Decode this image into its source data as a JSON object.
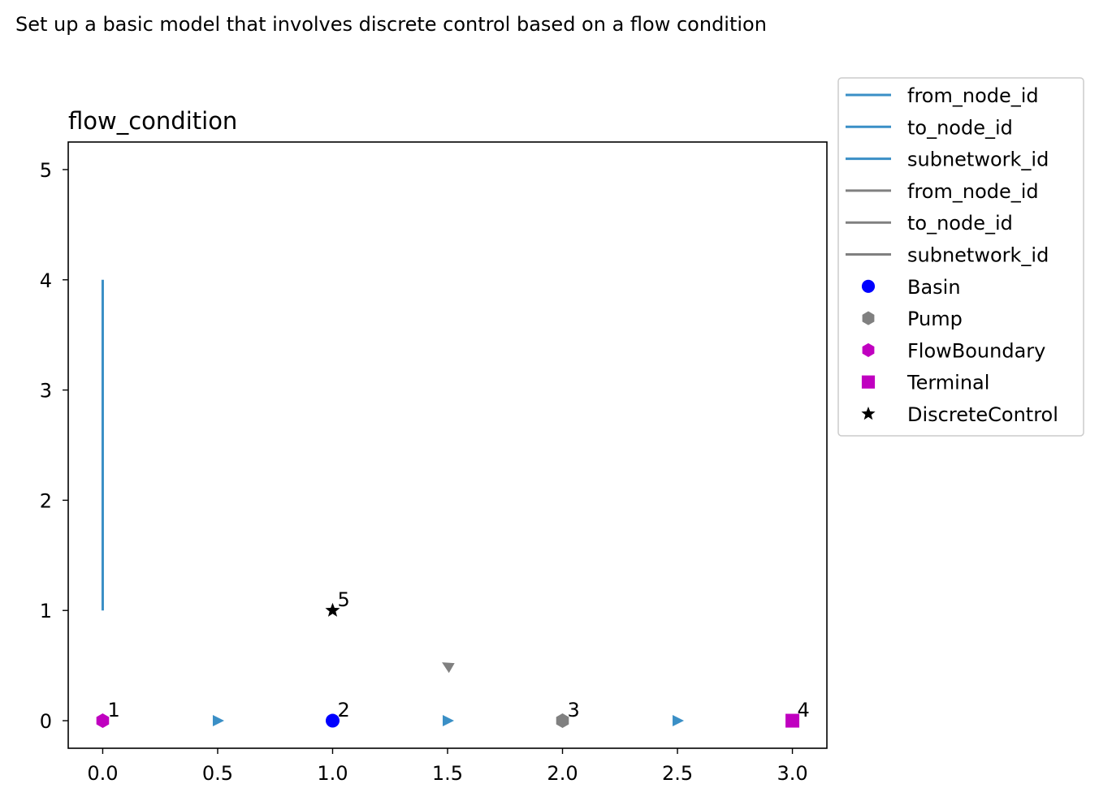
{
  "figure_title": "Set up a basic model that involves discrete control based on a flow condition",
  "chart_data": {
    "type": "scatter",
    "title": "flow_condition",
    "xlabel": "",
    "ylabel": "",
    "xlim": [
      -0.15,
      3.15
    ],
    "ylim": [
      -0.25,
      5.25
    ],
    "x_ticks": [
      0.0,
      0.5,
      1.0,
      1.5,
      2.0,
      2.5,
      3.0
    ],
    "x_tick_labels": [
      "0.0",
      "0.5",
      "1.0",
      "1.5",
      "2.0",
      "2.5",
      "3.0"
    ],
    "y_ticks": [
      0,
      1,
      2,
      3,
      4,
      5
    ],
    "y_tick_labels": [
      "0",
      "1",
      "2",
      "3",
      "4",
      "5"
    ],
    "grid": false,
    "legend_position": "outside-right-top",
    "colors": {
      "flow_edge": "#3a8fc6",
      "control_edge": "#808080",
      "basin": "#0000ff",
      "pump": "#808080",
      "flow_boundary": "#c000c0",
      "terminal": "#c000c0",
      "discrete_control": "#000000"
    },
    "legend": [
      {
        "label": "from_node_id",
        "kind": "line",
        "color": "#3a8fc6"
      },
      {
        "label": "to_node_id",
        "kind": "line",
        "color": "#3a8fc6"
      },
      {
        "label": "subnetwork_id",
        "kind": "line",
        "color": "#3a8fc6"
      },
      {
        "label": "from_node_id",
        "kind": "line",
        "color": "#808080"
      },
      {
        "label": "to_node_id",
        "kind": "line",
        "color": "#808080"
      },
      {
        "label": "subnetwork_id",
        "kind": "line",
        "color": "#808080"
      },
      {
        "label": "Basin",
        "kind": "marker",
        "marker": "circle",
        "color": "#0000ff"
      },
      {
        "label": "Pump",
        "kind": "marker",
        "marker": "hexagon",
        "color": "#808080"
      },
      {
        "label": "FlowBoundary",
        "kind": "marker",
        "marker": "hexagon",
        "color": "#c000c0"
      },
      {
        "label": "Terminal",
        "kind": "marker",
        "marker": "square",
        "color": "#c000c0"
      },
      {
        "label": "DiscreteControl",
        "kind": "marker",
        "marker": "star",
        "color": "#000000"
      }
    ],
    "nodes": [
      {
        "id": "1",
        "type": "FlowBoundary",
        "x": 0,
        "y": 0,
        "marker": "hexagon",
        "color": "#c000c0"
      },
      {
        "id": "2",
        "type": "Basin",
        "x": 1,
        "y": 0,
        "marker": "circle",
        "color": "#0000ff"
      },
      {
        "id": "3",
        "type": "Pump",
        "x": 2,
        "y": 0,
        "marker": "hexagon",
        "color": "#808080"
      },
      {
        "id": "4",
        "type": "Terminal",
        "x": 3,
        "y": 0,
        "marker": "square",
        "color": "#c000c0"
      },
      {
        "id": "5",
        "type": "DiscreteControl",
        "x": 1,
        "y": 1,
        "marker": "star",
        "color": "#000000"
      }
    ],
    "edges": [
      {
        "x": [
          0,
          0
        ],
        "y": [
          1,
          4
        ],
        "color": "#3a8fc6"
      }
    ],
    "arrows": [
      {
        "x": 0.5,
        "y": 0,
        "direction": "right",
        "color": "#3a8fc6"
      },
      {
        "x": 1.5,
        "y": 0,
        "direction": "right",
        "color": "#3a8fc6"
      },
      {
        "x": 2.5,
        "y": 0,
        "direction": "right",
        "color": "#3a8fc6"
      },
      {
        "x": 1.5,
        "y": 0.5,
        "direction": "up-left",
        "color": "#808080"
      }
    ]
  }
}
